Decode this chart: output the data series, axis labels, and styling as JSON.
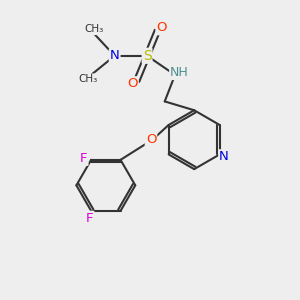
{
  "bg_color": "#eeeeee",
  "bond_color": "#333333",
  "bond_width": 1.5,
  "atom_colors": {
    "N_blue": "#0000dd",
    "S": "#bbbb00",
    "O_red": "#ff3300",
    "NH_teal": "#4a9090",
    "O_ether": "#ff3300",
    "N_pyridine": "#0000dd",
    "F": "#dd00dd",
    "C_dark": "#333333"
  },
  "xlim": [
    0,
    10
  ],
  "ylim": [
    0,
    10
  ]
}
